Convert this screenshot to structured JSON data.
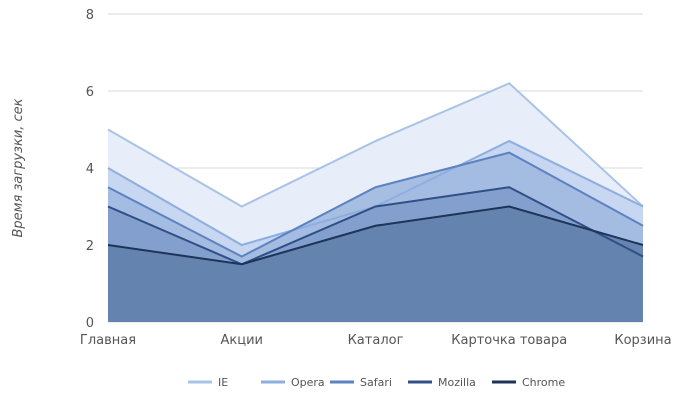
{
  "chart_data": {
    "type": "area",
    "title": "",
    "xlabel": "",
    "ylabel": "Время загрузки, сек",
    "categories": [
      "Главная",
      "Акции",
      "Каталог",
      "Карточка товара",
      "Корзина"
    ],
    "ylim": [
      0,
      8
    ],
    "yticks": [
      0,
      2,
      4,
      6,
      8
    ],
    "grid": true,
    "legend_position": "bottom",
    "series": [
      {
        "name": "IE",
        "values": [
          5,
          3,
          4.7,
          6.2,
          3
        ],
        "fill": "#e4ecf8",
        "stroke": "#a9c3e7"
      },
      {
        "name": "Opera",
        "values": [
          4,
          2,
          3,
          4.7,
          3
        ],
        "fill": "#c3d4ef",
        "stroke": "#8daede"
      },
      {
        "name": "Safari",
        "values": [
          3.5,
          1.7,
          3.5,
          4.4,
          2.5
        ],
        "fill": "#a0b8e0",
        "stroke": "#5c82c0"
      },
      {
        "name": "Mozilla",
        "values": [
          3,
          1.5,
          3,
          3.5,
          1.7
        ],
        "fill": "#7f9ccc",
        "stroke": "#2f4f85"
      },
      {
        "name": "Chrome",
        "values": [
          2,
          1.5,
          2.5,
          3,
          2
        ],
        "fill": "#617fab",
        "stroke": "#1d3358"
      }
    ]
  }
}
